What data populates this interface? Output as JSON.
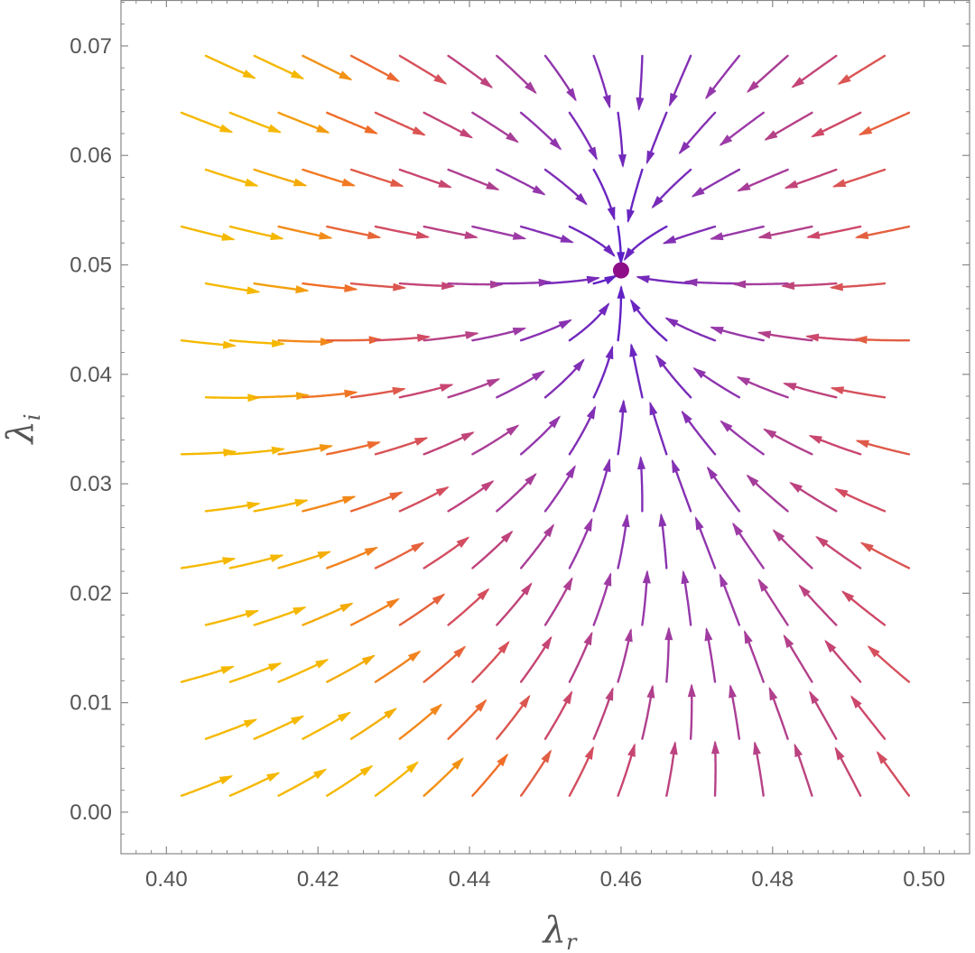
{
  "chart_data": {
    "type": "stream",
    "xlabel": "λ",
    "xlabel_sub": "r",
    "ylabel": "λ",
    "ylabel_sub": "i",
    "xlim": [
      0.394,
      0.506
    ],
    "ylim": [
      -0.0038,
      0.0742
    ],
    "x_ticks": [
      "0.40",
      "0.42",
      "0.44",
      "0.46",
      "0.48",
      "0.50"
    ],
    "y_ticks": [
      "0.00",
      "0.01",
      "0.02",
      "0.03",
      "0.04",
      "0.05",
      "0.06",
      "0.07"
    ],
    "fixed_point": {
      "x": 0.46,
      "y": 0.0495
    },
    "grid": false,
    "colors": {
      "slow": "#5a1fc8",
      "mid": "#9b3aa8",
      "fast": "#f5b800",
      "fixed_point": "#8e0e88",
      "frame": "#888888"
    }
  }
}
